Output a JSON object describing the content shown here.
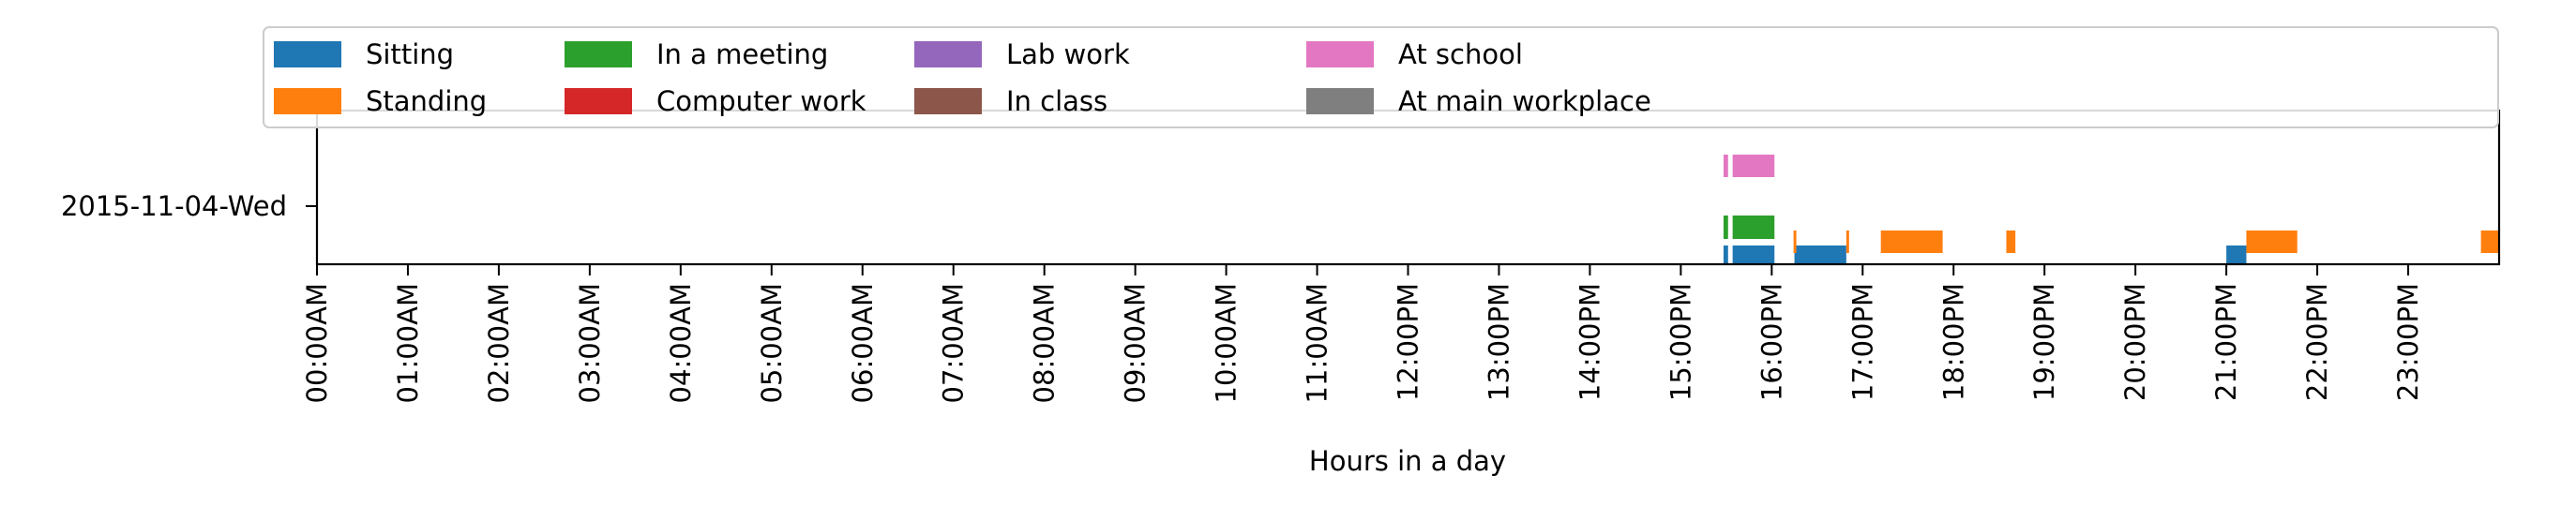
{
  "chart_data": {
    "type": "timeline",
    "xlabel": "Hours in a day",
    "ylabel": "",
    "xlim": [
      0,
      24
    ],
    "x_tick_labels": [
      "00:00AM",
      "01:00AM",
      "02:00AM",
      "03:00AM",
      "04:00AM",
      "05:00AM",
      "06:00AM",
      "07:00AM",
      "08:00AM",
      "09:00AM",
      "10:00AM",
      "11:00AM",
      "12:00PM",
      "13:00PM",
      "14:00PM",
      "15:00PM",
      "16:00PM",
      "17:00PM",
      "18:00PM",
      "19:00PM",
      "20:00PM",
      "21:00PM",
      "22:00PM",
      "23:00PM"
    ],
    "row_label": "2015-11-04-Wed",
    "legend_placement": "top",
    "series": [
      {
        "name": "Sitting",
        "color": "#1f77b4",
        "intervals": [
          [
            15.47,
            15.52
          ],
          [
            15.57,
            16.03
          ],
          [
            16.25,
            16.82
          ],
          [
            21.0,
            21.22
          ]
        ]
      },
      {
        "name": "Standing",
        "color": "#ff7f0e",
        "intervals": [
          [
            16.24,
            16.27
          ],
          [
            16.82,
            16.85
          ],
          [
            17.2,
            17.88
          ],
          [
            18.58,
            18.68
          ],
          [
            21.22,
            21.78
          ],
          [
            23.8,
            24.0
          ]
        ]
      },
      {
        "name": "In a meeting",
        "color": "#2ca02c",
        "intervals": [
          [
            15.47,
            15.52
          ],
          [
            15.57,
            16.03
          ]
        ]
      },
      {
        "name": "Computer work",
        "color": "#d62728",
        "intervals": []
      },
      {
        "name": "Lab work",
        "color": "#9467bd",
        "intervals": []
      },
      {
        "name": "In class",
        "color": "#8c564b",
        "intervals": []
      },
      {
        "name": "At school",
        "color": "#e377c2",
        "intervals": [
          [
            15.47,
            15.52
          ],
          [
            15.57,
            16.03
          ]
        ]
      },
      {
        "name": "At main workplace",
        "color": "#7f7f7f",
        "intervals": []
      }
    ]
  }
}
